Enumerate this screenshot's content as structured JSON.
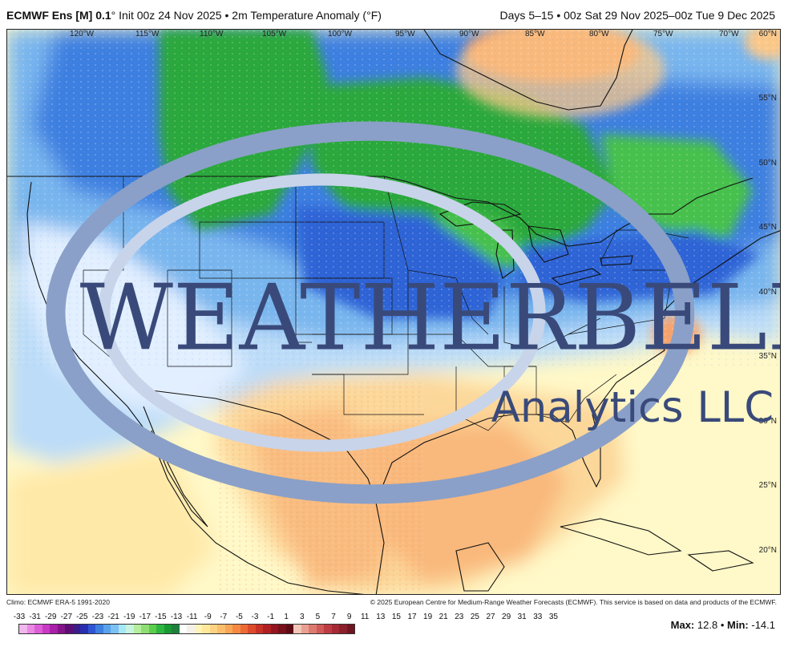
{
  "header": {
    "model": "ECMWF Ens [M] 0.1",
    "degree": "°",
    "init": "Init 00z 24 Nov 2025",
    "bullet": "•",
    "field": "2m Temperature Anomaly (°F)",
    "range": "Days 5–15 • 00z Sat 29 Nov 2025–00z Tue 9 Dec 2025"
  },
  "map": {
    "lon_labels": [
      "120°W",
      "115°W",
      "110°W",
      "105°W",
      "100°W",
      "95°W",
      "90°W",
      "85°W",
      "80°W",
      "75°W",
      "70°W"
    ],
    "lat_labels": [
      "60°N",
      "55°N",
      "50°N",
      "45°N",
      "40°N",
      "35°N",
      "30°N",
      "25°N",
      "20°N"
    ],
    "colors": {
      "warm_ocean": "#fff8c8",
      "warm_light": "#ffe9a8",
      "warm_mid": "#fcc888",
      "warm_strong": "#f7a26a",
      "near_zero": "#eef6ff",
      "cool_light": "#bcdcf8",
      "cool_mid": "#79b6ee",
      "cool_strong": "#3e7fe0",
      "cold_blue": "#2f64d6",
      "cold_green": "#2ca83a",
      "cold_green_light": "#46c14c",
      "hot_spot": "#f48a55"
    }
  },
  "logo": {
    "text": "WEATHERBELL",
    "sub": "Analytics LLC"
  },
  "footer": {
    "climo": "Climo: ECMWF ERA-5 1991-2020",
    "copyright": "© 2025 European Centre for Medium-Range Weather Forecasts (ECMWF). This service is based on data and products of the ECMWF."
  },
  "colorbar": {
    "ticks": [
      "-33",
      "-31",
      "-29",
      "-27",
      "-25",
      "-23",
      "-21",
      "-19",
      "-17",
      "-15",
      "-13",
      "-11",
      "-9",
      "-7",
      "-5",
      "-3",
      "-1",
      "1",
      "3",
      "5",
      "7",
      "9",
      "11",
      "13",
      "15",
      "17",
      "19",
      "21",
      "23",
      "25",
      "27",
      "29",
      "31",
      "33",
      "35"
    ],
    "colors": [
      "#f2b6ee",
      "#ea88e4",
      "#dd5fd8",
      "#c93ac5",
      "#a91fa9",
      "#841487",
      "#5c0e74",
      "#3a1d8a",
      "#2a2fb0",
      "#2f55d4",
      "#3e7fe0",
      "#5aa2ec",
      "#7cc0f4",
      "#a7e7f6",
      "#c7f4e0",
      "#b5ee9c",
      "#8ede74",
      "#5ccd4c",
      "#2fb640",
      "#199a32",
      "#1f7f3c",
      "#ffffff",
      "#f4f0ea",
      "#fff4b8",
      "#ffe89a",
      "#fdd383",
      "#fbbf6c",
      "#f9a657",
      "#f48a42",
      "#ed6a35",
      "#dd4b2c",
      "#c83126",
      "#b02022",
      "#921520",
      "#7a0f1c",
      "#5e0a14",
      "#f2c6b8",
      "#e9a090",
      "#dc7a70",
      "#cf5a58",
      "#bd3c44",
      "#a52a36",
      "#8c1f2c",
      "#701622"
    ],
    "max_label": "Max:",
    "max_value": "12.8",
    "sep": "•",
    "min_label": "Min:",
    "min_value": "-14.1"
  }
}
